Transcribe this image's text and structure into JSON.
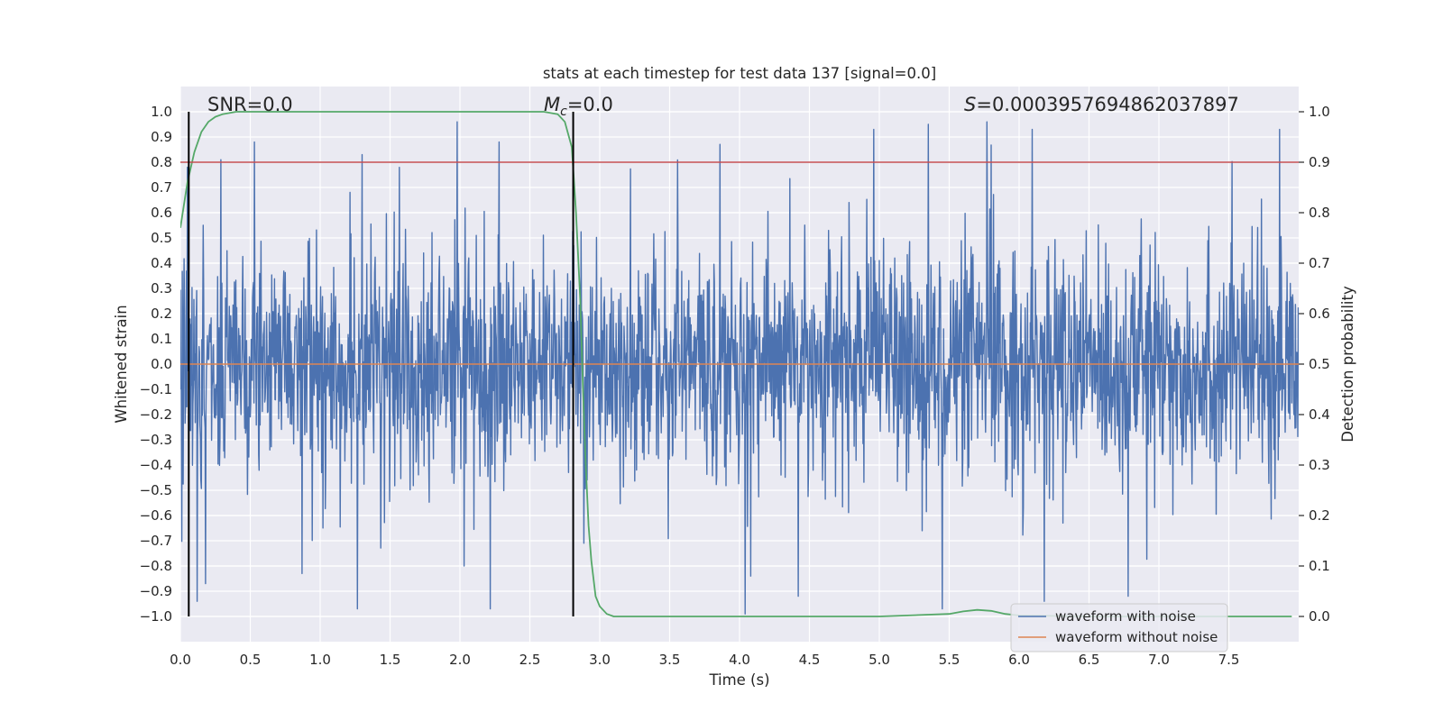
{
  "chart_data": {
    "type": "line",
    "title": "stats at each timestep for test data 137 [signal=0.0]",
    "xlabel": "Time (s)",
    "ylabel_left": "Whitened strain",
    "ylabel_right": "Detection probability",
    "xlim": [
      0,
      8
    ],
    "ylim_left": [
      -1.1,
      1.1
    ],
    "ylim_right": [
      -0.05,
      1.05
    ],
    "xticks": [
      "0.0",
      "0.5",
      "1.0",
      "1.5",
      "2.0",
      "2.5",
      "3.0",
      "3.5",
      "4.0",
      "4.5",
      "5.0",
      "5.5",
      "6.0",
      "6.5",
      "7.0",
      "7.5"
    ],
    "yticks_left": [
      "1.0",
      "0.9",
      "0.8",
      "0.7",
      "0.6",
      "0.5",
      "0.4",
      "0.3",
      "0.2",
      "0.1",
      "0.0",
      "−0.1",
      "−0.2",
      "−0.3",
      "−0.4",
      "−0.5",
      "−0.6",
      "−0.7",
      "−0.8",
      "−0.9",
      "−1.0"
    ],
    "yticks_right": [
      "1.0",
      "0.9",
      "0.8",
      "0.7",
      "0.6",
      "0.5",
      "0.4",
      "0.3",
      "0.2",
      "0.1",
      "0.0"
    ],
    "grid": true,
    "legend_position": "lower-right",
    "annotations": {
      "snr": "SNR=0.0",
      "mc_symbol": "M",
      "mc_subscript": "c",
      "mc_value": "=0.0",
      "s_symbol": "S",
      "s_value": "=0.0003957694862037897"
    },
    "series": [
      {
        "name": "waveform with noise",
        "color": "#4c72b0",
        "axis": "left",
        "style": "dense noise, amplitude mostly within ±0.4, peaks up to about 0.95 and down to about −1.0",
        "notable_peaks": [
          {
            "x": 0.05,
            "y": 0.78
          },
          {
            "x": 0.12,
            "y": -0.94
          },
          {
            "x": 0.18,
            "y": -0.87
          },
          {
            "x": 0.29,
            "y": 0.81
          },
          {
            "x": 0.53,
            "y": 0.88
          },
          {
            "x": 0.87,
            "y": -0.83
          },
          {
            "x": 1.3,
            "y": 0.83
          },
          {
            "x": 1.98,
            "y": 0.96
          },
          {
            "x": 2.03,
            "y": -0.8
          },
          {
            "x": 2.28,
            "y": 0.88
          },
          {
            "x": 4.04,
            "y": -0.99
          },
          {
            "x": 4.08,
            "y": -0.84
          },
          {
            "x": 4.42,
            "y": -0.92
          },
          {
            "x": 5.35,
            "y": 0.95
          },
          {
            "x": 5.45,
            "y": -0.97
          },
          {
            "x": 5.77,
            "y": 0.96
          },
          {
            "x": 6.18,
            "y": -0.94
          },
          {
            "x": 6.78,
            "y": -0.92
          }
        ]
      },
      {
        "name": "waveform without noise",
        "color": "#dd8452",
        "axis": "left",
        "x": [
          0,
          8
        ],
        "y": [
          0,
          0
        ]
      },
      {
        "name": "detection probability",
        "color": "#55a868",
        "axis": "right",
        "x": [
          0.0,
          0.05,
          0.1,
          0.15,
          0.2,
          0.25,
          0.3,
          0.4,
          0.6,
          1.0,
          1.5,
          2.0,
          2.5,
          2.6,
          2.7,
          2.75,
          2.8,
          2.83,
          2.86,
          2.88,
          2.9,
          2.92,
          2.94,
          2.97,
          3.0,
          3.05,
          3.1,
          3.3,
          4.0,
          5.0,
          5.5,
          5.6,
          5.7,
          5.8,
          5.9,
          6.0,
          6.5,
          7.0,
          7.5,
          7.95
        ],
        "y": [
          0.77,
          0.86,
          0.92,
          0.96,
          0.98,
          0.99,
          0.995,
          1.0,
          1.0,
          1.0,
          1.0,
          1.0,
          1.0,
          1.0,
          0.995,
          0.98,
          0.93,
          0.8,
          0.63,
          0.45,
          0.3,
          0.18,
          0.11,
          0.04,
          0.02,
          0.005,
          0.0,
          0.0,
          0.0,
          0.0,
          0.005,
          0.01,
          0.013,
          0.011,
          0.005,
          0.002,
          0.0,
          0.0,
          0.0,
          0.0
        ]
      },
      {
        "name": "threshold",
        "color": "#c44e52",
        "axis": "right",
        "x": [
          0,
          8
        ],
        "y": [
          0.9,
          0.9
        ]
      },
      {
        "name": "markers",
        "color": "#000000",
        "axis": "right",
        "vlines_x": [
          0.06,
          2.81
        ],
        "vline_range": [
          0,
          1
        ]
      }
    ]
  }
}
